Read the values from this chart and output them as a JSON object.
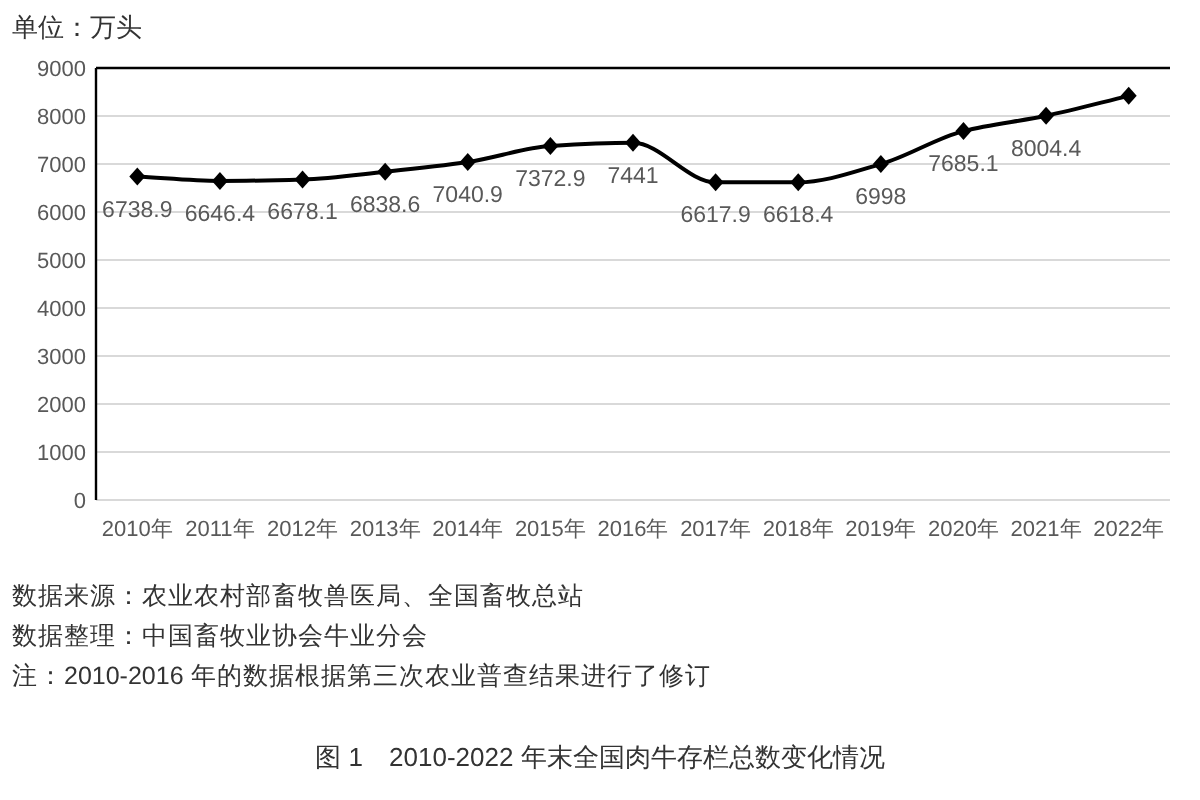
{
  "chart_data": {
    "type": "line",
    "title": "图 1　2010-2022 年末全国肉牛存栏总数变化情况",
    "ylabel": "单位：万头",
    "categories": [
      "2010年",
      "2011年",
      "2012年",
      "2013年",
      "2014年",
      "2015年",
      "2016年",
      "2017年",
      "2018年",
      "2019年",
      "2020年",
      "2021年",
      "2022年"
    ],
    "series": [
      {
        "color": "#000000",
        "values": [
          6738.9,
          6646.4,
          6678.1,
          6838.6,
          7040.9,
          7372.9,
          7441,
          6617.9,
          6618.4,
          6998,
          7685.1,
          8004.4,
          8420
        ],
        "value_labels": [
          "6738.9",
          "6646.4",
          "6678.1",
          "6838.6",
          "7040.9",
          "7372.9",
          "7441",
          "6617.9",
          "6618.4",
          "6998",
          "7685.1",
          "8004.4",
          null
        ]
      }
    ],
    "ylim": [
      0,
      9000
    ],
    "yticks": [
      0,
      1000,
      2000,
      3000,
      4000,
      5000,
      6000,
      7000,
      8000,
      9000
    ],
    "grid": "y",
    "marker": "diamond",
    "line_style": "solid",
    "annotations": [
      "数据来源：农业农村部畜牧兽医局、全国畜牧总站",
      "数据整理：中国畜牧业协会牛业分会",
      "注：2010-2016 年的数据根据第三次农业普查结果进行了修订"
    ]
  }
}
